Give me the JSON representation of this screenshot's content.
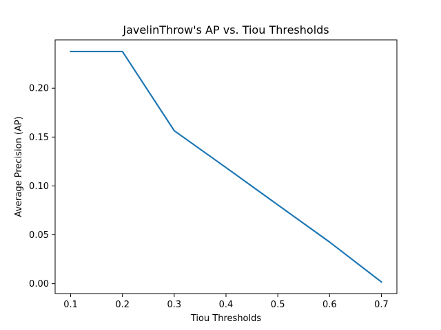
{
  "chart_data": {
    "type": "line",
    "title": "JavelinThrow's AP vs. Tiou Thresholds",
    "xlabel": "Tiou Thresholds",
    "ylabel": "Average Precision (AP)",
    "x": [
      0.1,
      0.2,
      0.3,
      0.4,
      0.5,
      0.6,
      0.7
    ],
    "series": [
      {
        "values": [
          0.2375,
          0.2375,
          0.1565,
          0.1188,
          0.0806,
          0.0426,
          0.0018
        ],
        "color": "#1f77b4"
      }
    ],
    "xlim": [
      0.07,
      0.73
    ],
    "ylim": [
      -0.0101,
      0.2494
    ],
    "xticks": [
      0.1,
      0.2,
      0.3,
      0.4,
      0.5,
      0.6,
      0.7
    ],
    "xtick_labels": [
      "0.1",
      "0.2",
      "0.3",
      "0.4",
      "0.5",
      "0.6",
      "0.7"
    ],
    "yticks": [
      0.0,
      0.05,
      0.1,
      0.15,
      0.2
    ],
    "ytick_labels": [
      "0.00",
      "0.05",
      "0.10",
      "0.15",
      "0.20"
    ],
    "grid": false,
    "legend": "none"
  }
}
